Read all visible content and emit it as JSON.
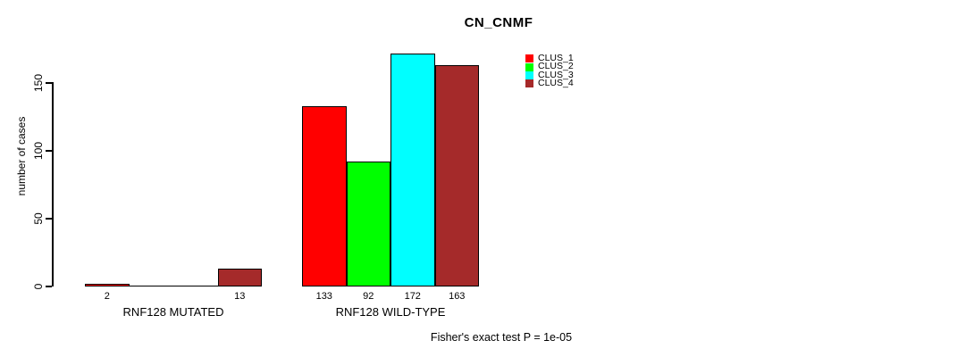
{
  "chart_data": {
    "type": "bar",
    "title": "CN_CNMF",
    "ylabel": "number of cases",
    "xlabel": "",
    "yticks": [
      0,
      50,
      100,
      150
    ],
    "ylim": [
      0,
      172
    ],
    "grid": false,
    "legend_position": "top-right",
    "legend": [
      {
        "label": "CLUS_1",
        "color": "#FF0000"
      },
      {
        "label": "CLUS_2",
        "color": "#00FF00"
      },
      {
        "label": "CLUS_3",
        "color": "#00FFFF"
      },
      {
        "label": "CLUS_4",
        "color": "#A52A2A"
      }
    ],
    "groups": [
      {
        "label": "RNF128 MUTATED",
        "bars": [
          {
            "cluster": "CLUS_1",
            "value": 2,
            "value_label": "2",
            "color": "#FF0000"
          },
          {
            "cluster": "CLUS_2",
            "value": 0,
            "value_label": "",
            "color": "#00FF00"
          },
          {
            "cluster": "CLUS_3",
            "value": 0,
            "value_label": "",
            "color": "#00FFFF"
          },
          {
            "cluster": "CLUS_4",
            "value": 13,
            "value_label": "13",
            "color": "#A52A2A"
          }
        ]
      },
      {
        "label": "RNF128 WILD-TYPE",
        "bars": [
          {
            "cluster": "CLUS_1",
            "value": 133,
            "value_label": "133",
            "color": "#FF0000"
          },
          {
            "cluster": "CLUS_2",
            "value": 92,
            "value_label": "92",
            "color": "#00FF00"
          },
          {
            "cluster": "CLUS_3",
            "value": 172,
            "value_label": "172",
            "color": "#00FFFF"
          },
          {
            "cluster": "CLUS_4",
            "value": 163,
            "value_label": "163",
            "color": "#A52A2A"
          }
        ]
      }
    ],
    "annotation": "Fisher's exact test P = 1e-05"
  }
}
